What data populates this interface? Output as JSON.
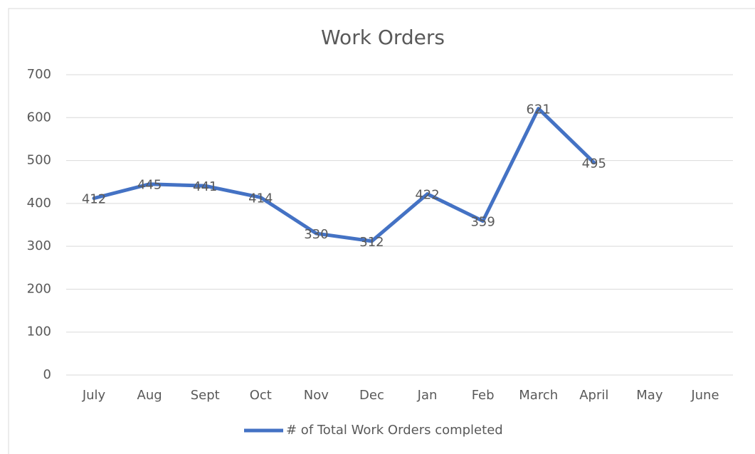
{
  "chart_data": {
    "type": "line",
    "title": "Work Orders",
    "categories": [
      "July",
      "Aug",
      "Sept",
      "Oct",
      "Nov",
      "Dec",
      "Jan",
      "Feb",
      "March",
      "April",
      "May",
      "June"
    ],
    "series": [
      {
        "name": "# of Total Work Orders completed",
        "color": "#4472c4",
        "values": [
          412,
          445,
          441,
          414,
          330,
          312,
          422,
          359,
          621,
          495,
          null,
          null
        ]
      }
    ],
    "ylim": [
      0,
      700
    ],
    "yticks": [
      0,
      100,
      200,
      300,
      400,
      500,
      600,
      700
    ],
    "grid": true,
    "legend": "bottom",
    "data_labels": true
  }
}
